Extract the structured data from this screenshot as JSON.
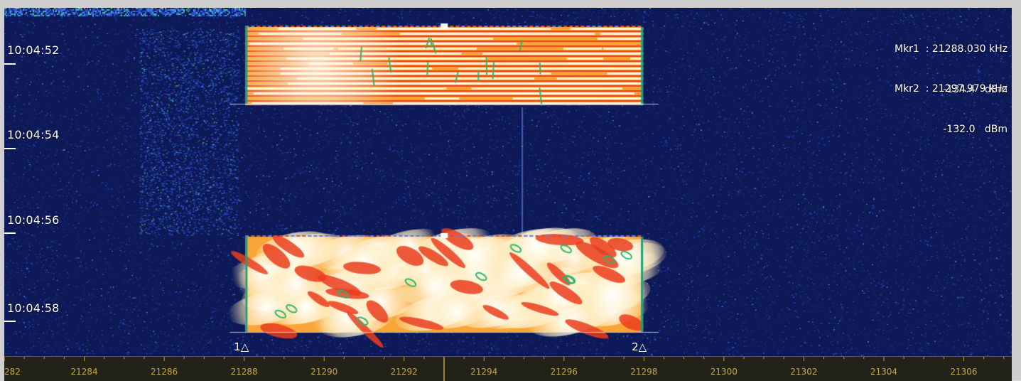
{
  "waterfall": {
    "time_labels": [
      "10:04:52",
      "10:04:54",
      "10:04:56",
      "10:04:58"
    ],
    "marker1": {
      "flag_number": "1",
      "readout_freq": "Mkr1  : 21288.030 kHz",
      "readout_level": "-134.4   dBm",
      "freq_khz": 21288.03
    },
    "marker2": {
      "flag_number": "2",
      "readout_freq": "Mkr2  : 21297.979 kHz",
      "readout_level": "-132.0   dBm",
      "freq_khz": 21297.979
    },
    "colors": {
      "background": "#0e1a57",
      "noise": "#2b4bd6",
      "signal_hot": "#fff6dc",
      "signal_mid": "#f8a436",
      "signal_low": "#ea3d1d",
      "axis_text": "#c7a548"
    }
  },
  "freq_axis": {
    "unit": "kHz",
    "first_partial_label": "282",
    "labels": [
      "21284",
      "21286",
      "21288",
      "21290",
      "21292",
      "21294",
      "21296",
      "21298",
      "21300",
      "21302",
      "21304",
      "21306"
    ],
    "start_khz": 21282.0,
    "end_khz": 21307.2
  }
}
